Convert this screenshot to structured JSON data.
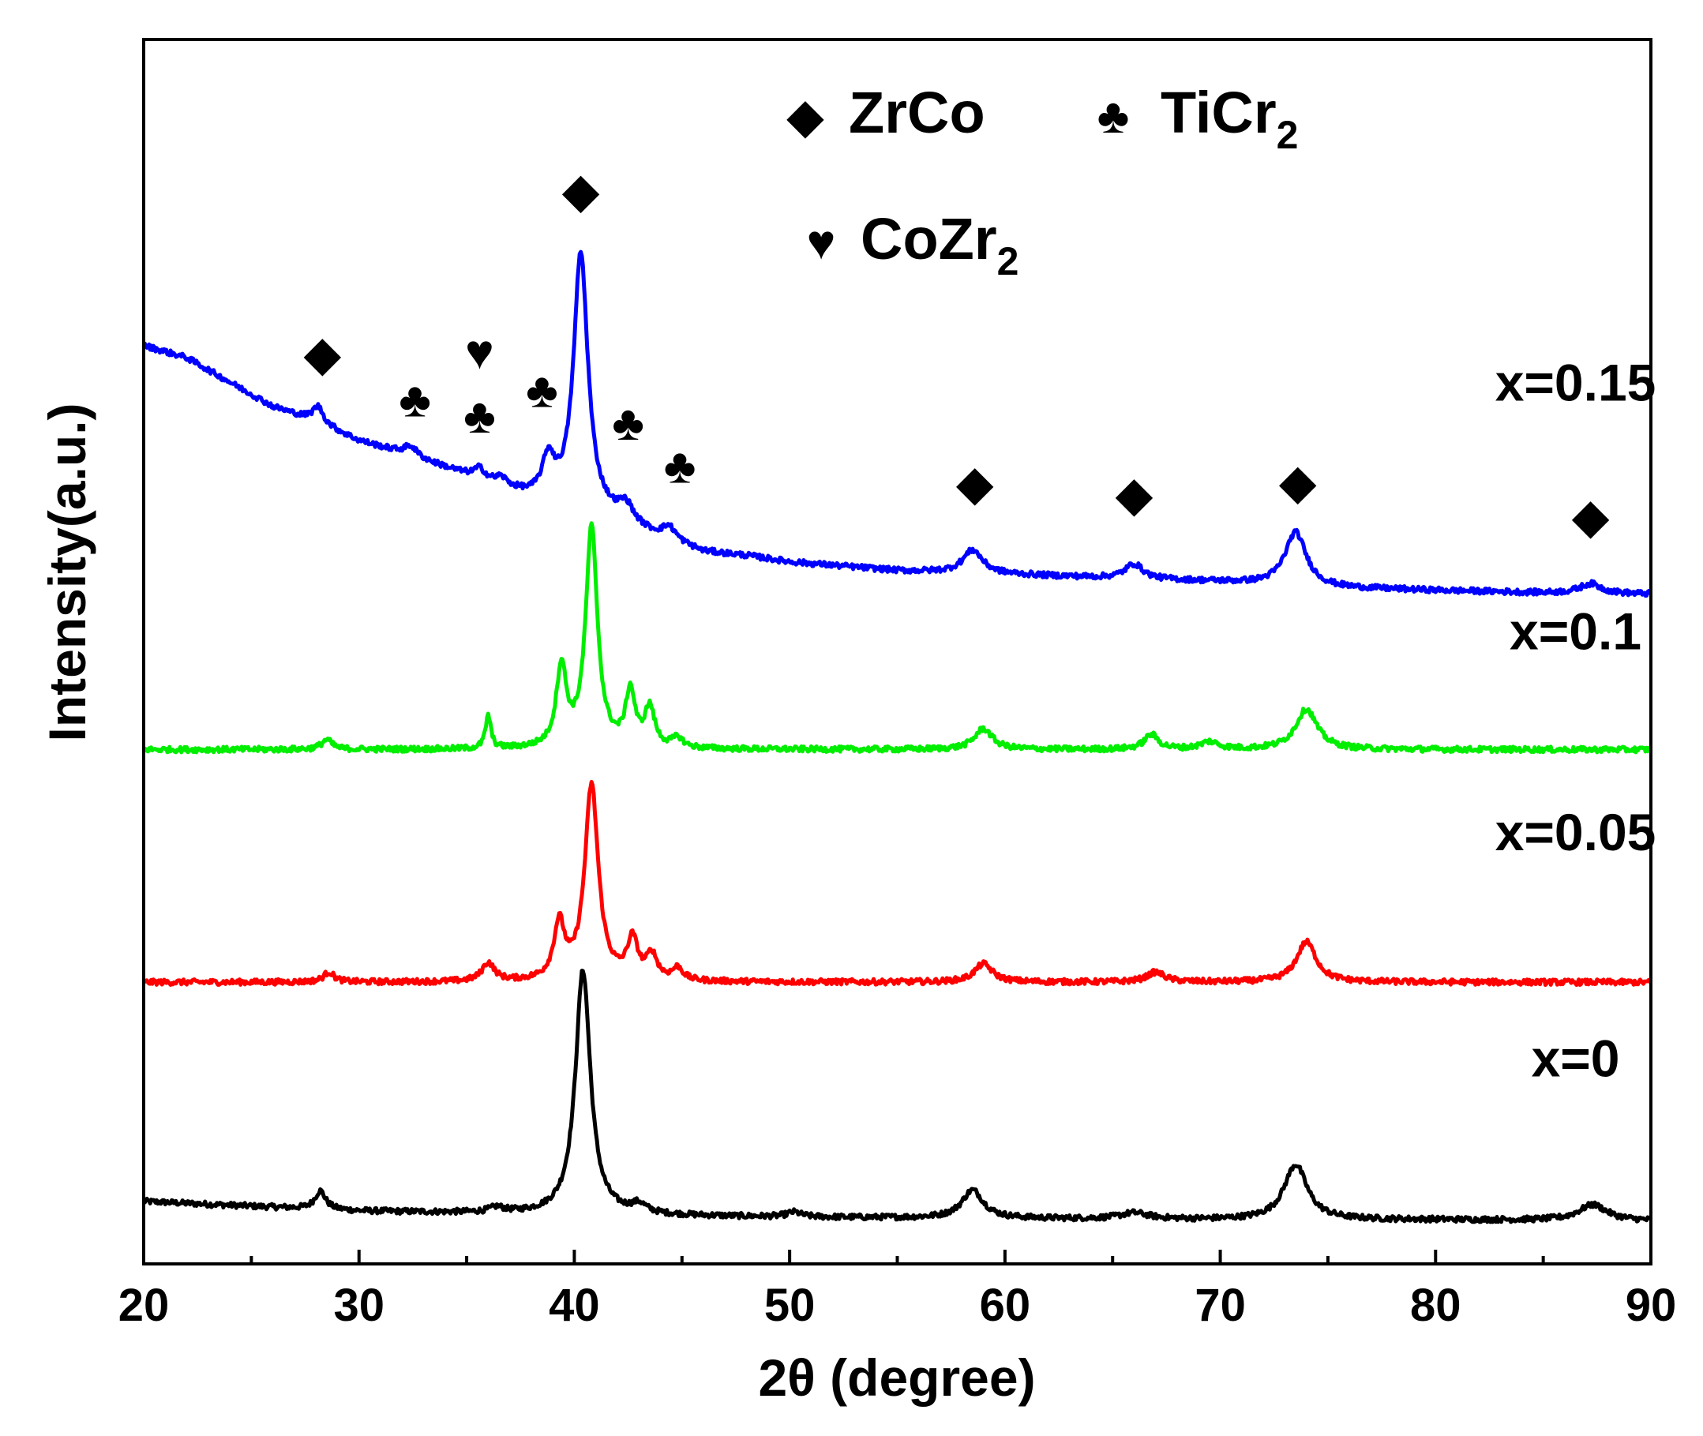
{
  "chart_data": {
    "type": "line",
    "title": "",
    "xlabel": "2θ (degree)",
    "ylabel": "Intensity(a.u.)",
    "xlim": [
      20,
      90
    ],
    "x_ticks": [
      20,
      30,
      40,
      50,
      60,
      70,
      80,
      90
    ],
    "x_tick_labels": [
      "20",
      "30",
      "40",
      "50",
      "60",
      "70",
      "80",
      "90"
    ],
    "y_ticks_shown": false,
    "ylim": [
      0,
      100
    ],
    "grid": false,
    "legend": {
      "placement": "top-right",
      "entries": [
        {
          "symbol": "◆",
          "base": "ZrCo",
          "sub": ""
        },
        {
          "symbol": "♣",
          "base": "TiCr",
          "sub": "2"
        },
        {
          "symbol": "♥",
          "base": "CoZr",
          "sub": "2"
        }
      ]
    },
    "series": [
      {
        "name": "x=0",
        "color": "#000000",
        "baseline": [
          [
            20,
            5.1
          ],
          [
            30,
            4.3
          ],
          [
            40,
            4.0
          ],
          [
            50,
            3.8
          ],
          [
            60,
            3.7
          ],
          [
            70,
            3.6
          ],
          [
            80,
            3.6
          ],
          [
            90,
            3.5
          ]
        ],
        "peaks": [
          [
            28.2,
            1.5,
            0.3
          ],
          [
            36.4,
            0.4,
            0.4
          ],
          [
            40.4,
            20.0,
            0.42
          ],
          [
            43.0,
            0.7,
            0.4
          ],
          [
            50.2,
            0.4,
            0.4
          ],
          [
            58.5,
            2.3,
            0.6
          ],
          [
            66.0,
            0.5,
            0.8
          ],
          [
            73.5,
            4.5,
            0.65
          ],
          [
            87.3,
            1.3,
            0.8
          ]
        ]
      },
      {
        "name": "x=0.05",
        "color": "#ff0000",
        "baseline": [
          [
            20,
            23.0
          ],
          [
            90,
            23.0
          ]
        ],
        "peaks": [
          [
            28.6,
            0.8,
            0.3
          ],
          [
            36.0,
            1.5,
            0.35
          ],
          [
            39.3,
            4.5,
            0.3
          ],
          [
            40.8,
            16.0,
            0.38
          ],
          [
            42.7,
            3.2,
            0.3
          ],
          [
            43.6,
            2.0,
            0.3
          ],
          [
            44.8,
            1.0,
            0.3
          ],
          [
            59.0,
            1.5,
            0.5
          ],
          [
            67.0,
            0.8,
            0.5
          ],
          [
            74.0,
            3.3,
            0.55
          ]
        ]
      },
      {
        "name": "x=0.1",
        "color": "#00ee00",
        "baseline": [
          [
            20,
            42.0
          ],
          [
            90,
            42.0
          ]
        ],
        "peaks": [
          [
            28.5,
            0.8,
            0.3
          ],
          [
            36.0,
            2.7,
            0.15
          ],
          [
            39.4,
            6.5,
            0.28
          ],
          [
            40.8,
            18.0,
            0.33
          ],
          [
            42.6,
            4.5,
            0.26
          ],
          [
            43.5,
            3.2,
            0.28
          ],
          [
            44.8,
            0.8,
            0.3
          ],
          [
            59.0,
            1.7,
            0.5
          ],
          [
            66.8,
            1.2,
            0.4
          ],
          [
            69.5,
            0.6,
            0.5
          ],
          [
            74.0,
            3.3,
            0.6
          ]
        ]
      },
      {
        "name": "x=0.15",
        "color": "#0000ff",
        "baseline": [
          [
            20,
            75.0
          ],
          [
            22,
            74.0
          ],
          [
            24,
            72.0
          ],
          [
            26,
            70.0
          ],
          [
            28,
            68.8
          ],
          [
            30,
            67.2
          ],
          [
            32,
            66.2
          ],
          [
            34,
            65.0
          ],
          [
            36,
            63.8
          ],
          [
            38,
            62.5
          ],
          [
            40,
            61.6
          ],
          [
            42,
            60.6
          ],
          [
            44,
            59.2
          ],
          [
            46,
            58.1
          ],
          [
            48,
            57.8
          ],
          [
            50,
            57.3
          ],
          [
            55,
            56.6
          ],
          [
            60,
            56.3
          ],
          [
            65,
            56.0
          ],
          [
            70,
            55.7
          ],
          [
            75,
            55.2
          ],
          [
            80,
            55.0
          ],
          [
            85,
            54.8
          ],
          [
            90,
            54.7
          ]
        ],
        "peaks": [
          [
            28.1,
            1.3,
            0.3
          ],
          [
            32.4,
            0.8,
            0.35
          ],
          [
            35.6,
            0.8,
            0.3
          ],
          [
            36.6,
            0.6,
            0.3
          ],
          [
            38.8,
            3.2,
            0.35
          ],
          [
            40.3,
            21.0,
            0.4
          ],
          [
            42.4,
            1.4,
            0.4
          ],
          [
            44.4,
            1.1,
            0.4
          ],
          [
            58.5,
            1.9,
            0.55
          ],
          [
            66.0,
            1.2,
            0.5
          ],
          [
            73.5,
            4.4,
            0.6
          ],
          [
            87.2,
            0.8,
            0.6
          ]
        ]
      }
    ],
    "series_labels": [
      {
        "text": "x=0.15",
        "x": 86.5,
        "y": 70.5
      },
      {
        "text": "x=0.1",
        "x": 86.5,
        "y": 50.2
      },
      {
        "text": "x=0.05",
        "x": 86.5,
        "y": 33.8
      },
      {
        "text": "x=0",
        "x": 86.5,
        "y": 15.3
      }
    ],
    "peak_markers": [
      {
        "symbol": "◆",
        "x": 28.3,
        "y": 73.0
      },
      {
        "symbol": "♣",
        "x": 32.6,
        "y": 69.2
      },
      {
        "symbol": "♥",
        "x": 35.6,
        "y": 73.1
      },
      {
        "symbol": "♣",
        "x": 35.6,
        "y": 67.9
      },
      {
        "symbol": "♣",
        "x": 38.5,
        "y": 70.0
      },
      {
        "symbol": "◆",
        "x": 40.3,
        "y": 86.3
      },
      {
        "symbol": "♣",
        "x": 42.5,
        "y": 67.3
      },
      {
        "symbol": "♣",
        "x": 44.9,
        "y": 63.8
      },
      {
        "symbol": "◆",
        "x": 58.6,
        "y": 62.4
      },
      {
        "symbol": "◆",
        "x": 66.0,
        "y": 61.5
      },
      {
        "symbol": "◆",
        "x": 73.6,
        "y": 62.5
      },
      {
        "symbol": "◆",
        "x": 87.2,
        "y": 59.7
      }
    ]
  }
}
